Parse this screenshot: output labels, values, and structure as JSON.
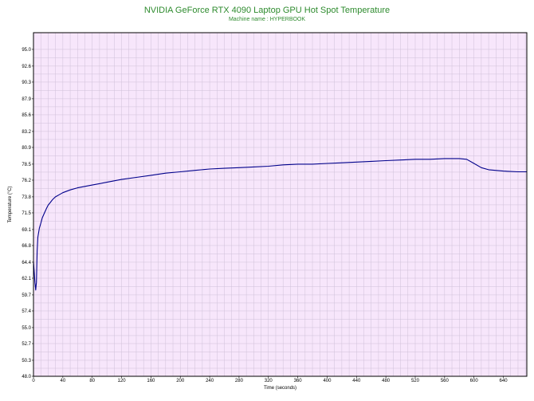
{
  "chart_data": {
    "type": "line",
    "title": "NVIDIA GeForce RTX 4090 Laptop GPU Hot Spot Temperature",
    "subtitle": "Machine name : HYPERBOOK",
    "xlabel": "Time (seconds)",
    "ylabel": "Temperature (°C)",
    "xlim": [
      0,
      672
    ],
    "ylim": [
      48.0,
      97.4
    ],
    "x_ticks": [
      0,
      40,
      80,
      120,
      160,
      200,
      240,
      280,
      320,
      360,
      400,
      440,
      480,
      520,
      560,
      600,
      640
    ],
    "y_ticks": [
      48.0,
      50.3,
      52.7,
      55.0,
      57.4,
      59.7,
      62.1,
      64.4,
      66.8,
      69.1,
      71.5,
      73.8,
      76.2,
      78.5,
      80.9,
      83.2,
      85.6,
      87.9,
      90.3,
      92.6,
      95.0
    ],
    "grid": true,
    "series": [
      {
        "color": "#00008b",
        "points": [
          [
            0,
            64.5
          ],
          [
            1,
            63.0
          ],
          [
            2,
            61.5
          ],
          [
            3,
            60.4
          ],
          [
            4,
            61.5
          ],
          [
            5,
            66.0
          ],
          [
            6,
            68.0
          ],
          [
            8,
            69.3
          ],
          [
            10,
            70.0
          ],
          [
            12,
            70.8
          ],
          [
            15,
            71.5
          ],
          [
            18,
            72.2
          ],
          [
            20,
            72.6
          ],
          [
            23,
            73.0
          ],
          [
            26,
            73.4
          ],
          [
            30,
            73.8
          ],
          [
            35,
            74.1
          ],
          [
            40,
            74.4
          ],
          [
            50,
            74.8
          ],
          [
            60,
            75.1
          ],
          [
            70,
            75.3
          ],
          [
            80,
            75.5
          ],
          [
            100,
            75.9
          ],
          [
            120,
            76.3
          ],
          [
            140,
            76.6
          ],
          [
            160,
            76.9
          ],
          [
            180,
            77.2
          ],
          [
            200,
            77.4
          ],
          [
            220,
            77.6
          ],
          [
            240,
            77.8
          ],
          [
            260,
            77.9
          ],
          [
            280,
            78.0
          ],
          [
            300,
            78.1
          ],
          [
            320,
            78.2
          ],
          [
            340,
            78.4
          ],
          [
            360,
            78.5
          ],
          [
            380,
            78.5
          ],
          [
            400,
            78.6
          ],
          [
            420,
            78.7
          ],
          [
            440,
            78.8
          ],
          [
            460,
            78.9
          ],
          [
            480,
            79.0
          ],
          [
            500,
            79.1
          ],
          [
            520,
            79.2
          ],
          [
            540,
            79.2
          ],
          [
            560,
            79.3
          ],
          [
            580,
            79.3
          ],
          [
            590,
            79.2
          ],
          [
            600,
            78.6
          ],
          [
            610,
            78.0
          ],
          [
            620,
            77.7
          ],
          [
            640,
            77.5
          ],
          [
            660,
            77.4
          ],
          [
            672,
            77.4
          ]
        ]
      }
    ]
  }
}
